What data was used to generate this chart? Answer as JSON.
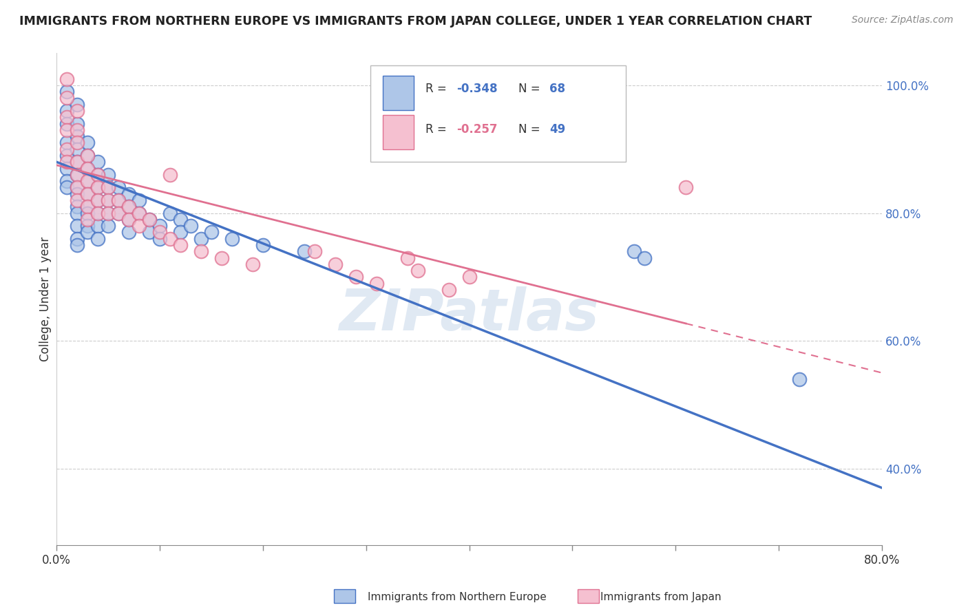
{
  "title": "IMMIGRANTS FROM NORTHERN EUROPE VS IMMIGRANTS FROM JAPAN COLLEGE, UNDER 1 YEAR CORRELATION CHART",
  "source": "Source: ZipAtlas.com",
  "ylabel": "College, Under 1 year",
  "legend_label1": "Immigrants from Northern Europe",
  "legend_label2": "Immigrants from Japan",
  "R1": -0.348,
  "N1": 68,
  "R2": -0.257,
  "N2": 49,
  "color1": "#aec6e8",
  "color2": "#f5c0d0",
  "line_color1": "#4472c4",
  "line_color2": "#e07090",
  "xmin": 0.0,
  "xmax": 0.8,
  "ymin": 0.28,
  "ymax": 1.05,
  "background_color": "#ffffff",
  "watermark": "ZIPatlas",
  "blue_scatter": [
    [
      0.01,
      0.99
    ],
    [
      0.01,
      0.96
    ],
    [
      0.01,
      0.94
    ],
    [
      0.01,
      0.91
    ],
    [
      0.01,
      0.89
    ],
    [
      0.01,
      0.87
    ],
    [
      0.01,
      0.85
    ],
    [
      0.01,
      0.84
    ],
    [
      0.02,
      0.97
    ],
    [
      0.02,
      0.94
    ],
    [
      0.02,
      0.92
    ],
    [
      0.02,
      0.9
    ],
    [
      0.02,
      0.88
    ],
    [
      0.02,
      0.86
    ],
    [
      0.02,
      0.84
    ],
    [
      0.02,
      0.83
    ],
    [
      0.02,
      0.81
    ],
    [
      0.02,
      0.8
    ],
    [
      0.02,
      0.78
    ],
    [
      0.02,
      0.76
    ],
    [
      0.02,
      0.75
    ],
    [
      0.03,
      0.91
    ],
    [
      0.03,
      0.89
    ],
    [
      0.03,
      0.87
    ],
    [
      0.03,
      0.85
    ],
    [
      0.03,
      0.83
    ],
    [
      0.03,
      0.81
    ],
    [
      0.03,
      0.8
    ],
    [
      0.03,
      0.78
    ],
    [
      0.03,
      0.77
    ],
    [
      0.04,
      0.88
    ],
    [
      0.04,
      0.86
    ],
    [
      0.04,
      0.84
    ],
    [
      0.04,
      0.82
    ],
    [
      0.04,
      0.8
    ],
    [
      0.04,
      0.78
    ],
    [
      0.04,
      0.76
    ],
    [
      0.05,
      0.86
    ],
    [
      0.05,
      0.84
    ],
    [
      0.05,
      0.82
    ],
    [
      0.05,
      0.8
    ],
    [
      0.05,
      0.78
    ],
    [
      0.06,
      0.84
    ],
    [
      0.06,
      0.82
    ],
    [
      0.06,
      0.8
    ],
    [
      0.07,
      0.83
    ],
    [
      0.07,
      0.81
    ],
    [
      0.07,
      0.79
    ],
    [
      0.07,
      0.77
    ],
    [
      0.08,
      0.82
    ],
    [
      0.08,
      0.8
    ],
    [
      0.09,
      0.79
    ],
    [
      0.09,
      0.77
    ],
    [
      0.1,
      0.78
    ],
    [
      0.1,
      0.76
    ],
    [
      0.11,
      0.8
    ],
    [
      0.12,
      0.79
    ],
    [
      0.12,
      0.77
    ],
    [
      0.13,
      0.78
    ],
    [
      0.14,
      0.76
    ],
    [
      0.15,
      0.77
    ],
    [
      0.17,
      0.76
    ],
    [
      0.2,
      0.75
    ],
    [
      0.24,
      0.74
    ],
    [
      0.33,
      0.99
    ],
    [
      0.56,
      0.74
    ],
    [
      0.57,
      0.73
    ],
    [
      0.72,
      0.54
    ]
  ],
  "pink_scatter": [
    [
      0.01,
      1.01
    ],
    [
      0.01,
      0.98
    ],
    [
      0.01,
      0.95
    ],
    [
      0.01,
      0.93
    ],
    [
      0.01,
      0.9
    ],
    [
      0.01,
      0.88
    ],
    [
      0.02,
      0.96
    ],
    [
      0.02,
      0.93
    ],
    [
      0.02,
      0.91
    ],
    [
      0.02,
      0.88
    ],
    [
      0.02,
      0.86
    ],
    [
      0.02,
      0.84
    ],
    [
      0.02,
      0.82
    ],
    [
      0.03,
      0.89
    ],
    [
      0.03,
      0.87
    ],
    [
      0.03,
      0.85
    ],
    [
      0.03,
      0.83
    ],
    [
      0.03,
      0.81
    ],
    [
      0.03,
      0.79
    ],
    [
      0.04,
      0.86
    ],
    [
      0.04,
      0.84
    ],
    [
      0.04,
      0.82
    ],
    [
      0.04,
      0.8
    ],
    [
      0.05,
      0.84
    ],
    [
      0.05,
      0.82
    ],
    [
      0.05,
      0.8
    ],
    [
      0.06,
      0.82
    ],
    [
      0.06,
      0.8
    ],
    [
      0.07,
      0.81
    ],
    [
      0.07,
      0.79
    ],
    [
      0.08,
      0.8
    ],
    [
      0.08,
      0.78
    ],
    [
      0.09,
      0.79
    ],
    [
      0.1,
      0.77
    ],
    [
      0.11,
      0.76
    ],
    [
      0.11,
      0.86
    ],
    [
      0.12,
      0.75
    ],
    [
      0.14,
      0.74
    ],
    [
      0.16,
      0.73
    ],
    [
      0.19,
      0.72
    ],
    [
      0.25,
      0.74
    ],
    [
      0.27,
      0.72
    ],
    [
      0.29,
      0.7
    ],
    [
      0.31,
      0.69
    ],
    [
      0.34,
      0.73
    ],
    [
      0.35,
      0.71
    ],
    [
      0.38,
      0.68
    ],
    [
      0.4,
      0.7
    ],
    [
      0.61,
      0.84
    ]
  ],
  "trend1_x": [
    0.0,
    0.8
  ],
  "trend1_y": [
    0.88,
    0.37
  ],
  "trend2_x": [
    0.0,
    0.8
  ],
  "trend2_y": [
    0.875,
    0.55
  ],
  "trend2_solid_end": 0.61
}
